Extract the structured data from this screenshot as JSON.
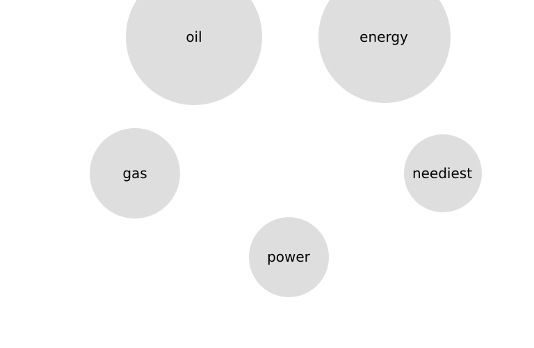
{
  "bubbles": [
    {
      "id": "oil",
      "label": "oil",
      "color": "#dedede"
    },
    {
      "id": "energy",
      "label": "energy",
      "color": "#dedede"
    },
    {
      "id": "gas",
      "label": "gas",
      "color": "#dedede"
    },
    {
      "id": "neediest",
      "label": "neediest",
      "color": "#dedede"
    },
    {
      "id": "power",
      "label": "power",
      "color": "#dedede"
    }
  ]
}
